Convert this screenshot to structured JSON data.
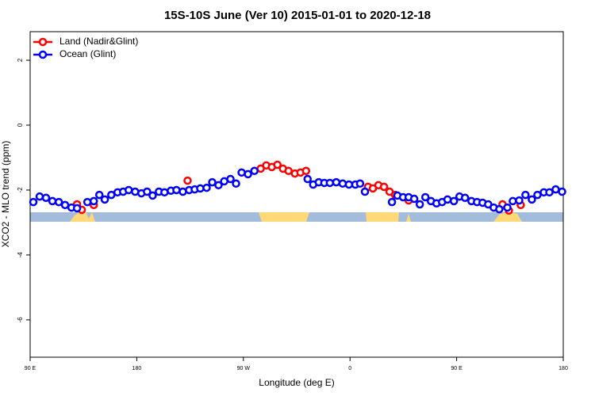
{
  "chart_data": {
    "type": "scatter",
    "title": "15S-10S June (Ver 10)   2015-01-01 to 2020-12-18",
    "x_label": "Longitude (deg E)",
    "y_label": "XCO2 - MLO trend (ppm)",
    "xlim": [
      90,
      540
    ],
    "ylim": [
      -7.15,
      2.88
    ],
    "xticks": [
      {
        "value": 90,
        "label": "90 E"
      },
      {
        "value": 180,
        "label": "180"
      },
      {
        "value": 270,
        "label": "90 W"
      },
      {
        "value": 360,
        "label": "0"
      },
      {
        "value": 450,
        "label": "90 E"
      },
      {
        "value": 540,
        "label": "180"
      }
    ],
    "yticks": [
      2,
      0,
      -2,
      -4,
      -6
    ],
    "legend_position": "top-left",
    "series": [
      {
        "name": "Land (Nadir&Glint)",
        "color": "#ff0000",
        "x": [
          129.6,
          133.6,
          143.7,
          222.9,
          284.6,
          289.3,
          294.0,
          298.7,
          303.4,
          308.1,
          313.5,
          318.2,
          322.9,
          375.2,
          379.3,
          384.0,
          388.7,
          393.4,
          398.1,
          409.5,
          488.7,
          494.1,
          504.1
        ],
        "values": [
          -2.44,
          -2.61,
          -2.46,
          -1.71,
          -1.34,
          -1.24,
          -1.29,
          -1.22,
          -1.34,
          -1.41,
          -1.49,
          -1.46,
          -1.41,
          -1.9,
          -1.95,
          -1.85,
          -1.9,
          -2.05,
          -2.15,
          -2.32,
          -2.44,
          -2.63,
          -2.46
        ]
      },
      {
        "name": "Ocean (Glint)",
        "color": "#0000ff",
        "x": [
          92.7,
          98.0,
          103.4,
          108.8,
          114.2,
          119.5,
          124.9,
          129.6,
          138.3,
          143.7,
          148.4,
          153.0,
          158.5,
          163.8,
          168.5,
          173.2,
          178.6,
          183.9,
          188.7,
          193.4,
          198.7,
          203.4,
          208.8,
          213.5,
          218.9,
          224.2,
          228.9,
          233.6,
          239.0,
          243.7,
          249.0,
          253.8,
          259.1,
          263.8,
          268.5,
          273.9,
          279.3,
          324.2,
          328.9,
          333.6,
          338.3,
          343.0,
          348.4,
          353.8,
          359.1,
          364.5,
          368.5,
          372.6,
          395.4,
          400.0,
          404.8,
          409.5,
          414.2,
          418.9,
          423.6,
          428.3,
          433.0,
          437.7,
          442.3,
          447.7,
          452.4,
          457.1,
          462.5,
          467.2,
          471.9,
          476.6,
          481.3,
          486.0,
          492.8,
          497.4,
          502.8,
          508.1,
          513.5,
          518.2,
          523.6,
          528.3,
          533.6,
          539.0
        ],
        "values": [
          -2.37,
          -2.2,
          -2.24,
          -2.34,
          -2.37,
          -2.46,
          -2.54,
          -2.56,
          -2.37,
          -2.34,
          -2.15,
          -2.29,
          -2.15,
          -2.07,
          -2.05,
          -2.0,
          -2.05,
          -2.1,
          -2.05,
          -2.17,
          -2.05,
          -2.07,
          -2.02,
          -2.0,
          -2.05,
          -2.0,
          -1.98,
          -1.95,
          -1.93,
          -1.76,
          -1.85,
          -1.73,
          -1.66,
          -1.8,
          -1.46,
          -1.51,
          -1.41,
          -1.66,
          -1.83,
          -1.76,
          -1.78,
          -1.78,
          -1.76,
          -1.8,
          -1.83,
          -1.83,
          -1.8,
          -2.05,
          -2.37,
          -2.17,
          -2.22,
          -2.22,
          -2.27,
          -2.44,
          -2.22,
          -2.34,
          -2.41,
          -2.37,
          -2.29,
          -2.34,
          -2.2,
          -2.24,
          -2.34,
          -2.37,
          -2.39,
          -2.44,
          -2.54,
          -2.59,
          -2.54,
          -2.34,
          -2.32,
          -2.15,
          -2.29,
          -2.15,
          -2.07,
          -2.07,
          -1.98,
          -2.05
        ]
      }
    ]
  }
}
